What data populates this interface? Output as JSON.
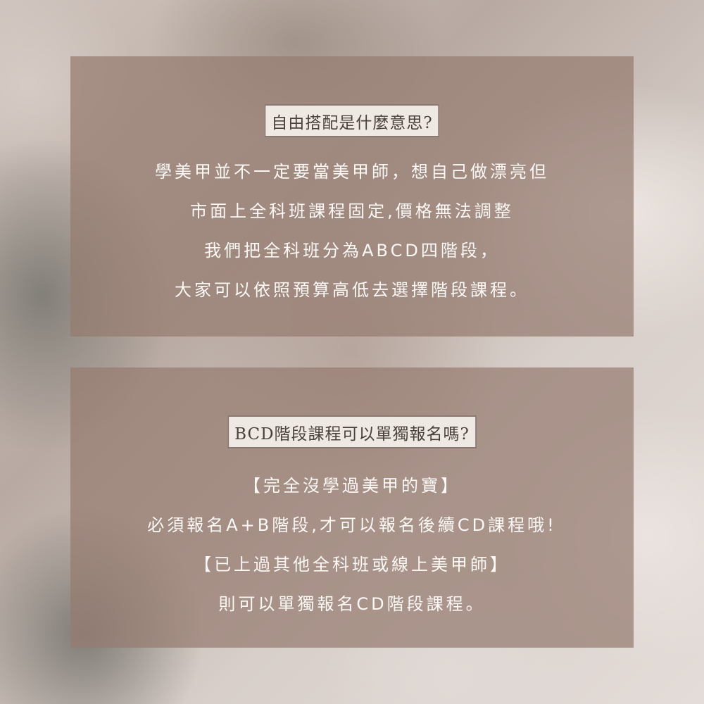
{
  "sections": [
    {
      "heading": "自由搭配是什麼意思?",
      "lines": [
        "學美甲並不一定要當美甲師，想自己做漂亮但",
        "市面上全科班課程固定,價格無法調整",
        "我們把全科班分為ABCD四階段，",
        "大家可以依照預算高低去選擇階段課程。"
      ]
    },
    {
      "heading": "BCD階段課程可以單獨報名嗎?",
      "lines": [
        "【完全沒學過美甲的寶】",
        "必須報名A+B階段,才可以報名後續CD課程哦!",
        "【已上過其他全科班或線上美甲師】",
        "則可以單獨報名CD階段課程。"
      ]
    }
  ]
}
